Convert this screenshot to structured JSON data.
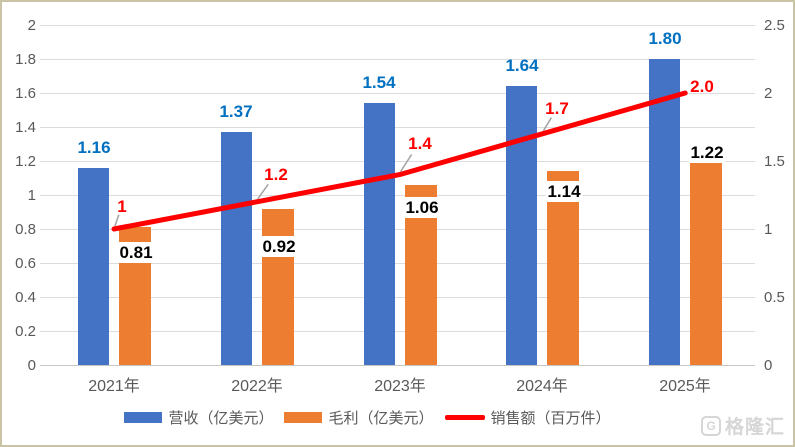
{
  "chart_data": {
    "type": "combo-bar-line",
    "categories": [
      "2021年",
      "2022年",
      "2023年",
      "2024年",
      "2025年"
    ],
    "series": [
      {
        "name": "营收（亿美元）",
        "kind": "bar",
        "axis": "left",
        "color": "#4472C4",
        "values": [
          1.16,
          1.37,
          1.54,
          1.64,
          1.8
        ],
        "labels": [
          "1.16",
          "1.37",
          "1.54",
          "1.64",
          "1.80"
        ],
        "label_color": "#0070C0"
      },
      {
        "name": "毛利（亿美元）",
        "kind": "bar",
        "axis": "left",
        "color": "#ED7D31",
        "values": [
          0.81,
          0.92,
          1.06,
          1.14,
          1.22
        ],
        "labels": [
          "0.81",
          "0.92",
          "1.06",
          "1.14",
          "1.22"
        ],
        "label_color": "#000000"
      },
      {
        "name": "销售额（百万件）",
        "kind": "line",
        "axis": "right",
        "color": "#FF0000",
        "values": [
          1.0,
          1.2,
          1.4,
          1.7,
          2.0
        ],
        "labels": [
          "1",
          "1.2",
          "1.4",
          "1.7",
          "2.0"
        ],
        "label_color": "#FF0000"
      }
    ],
    "left_axis": {
      "min": 0,
      "max": 2,
      "step": 0.2,
      "ticks": [
        "0",
        "0.2",
        "0.4",
        "0.6",
        "0.8",
        "1",
        "1.2",
        "1.4",
        "1.6",
        "1.8",
        "2"
      ]
    },
    "right_axis": {
      "min": 0,
      "max": 2.5,
      "step": 0.5,
      "ticks": [
        "0",
        "0.5",
        "1",
        "1.5",
        "2",
        "2.5"
      ]
    },
    "grid": true,
    "legend_position": "bottom",
    "title": ""
  },
  "watermark": {
    "logo_letter": "G",
    "text": "格隆汇"
  },
  "colors": {
    "revenue_bar": "#4472C4",
    "gross_profit_bar": "#ED7D31",
    "sales_line": "#FF0000",
    "revenue_label": "#0070C0",
    "axis_text": "#595959",
    "gridline": "#DCDCDC",
    "leader_line": "#A6A6A6",
    "frame_border": "#CBC3A6"
  }
}
